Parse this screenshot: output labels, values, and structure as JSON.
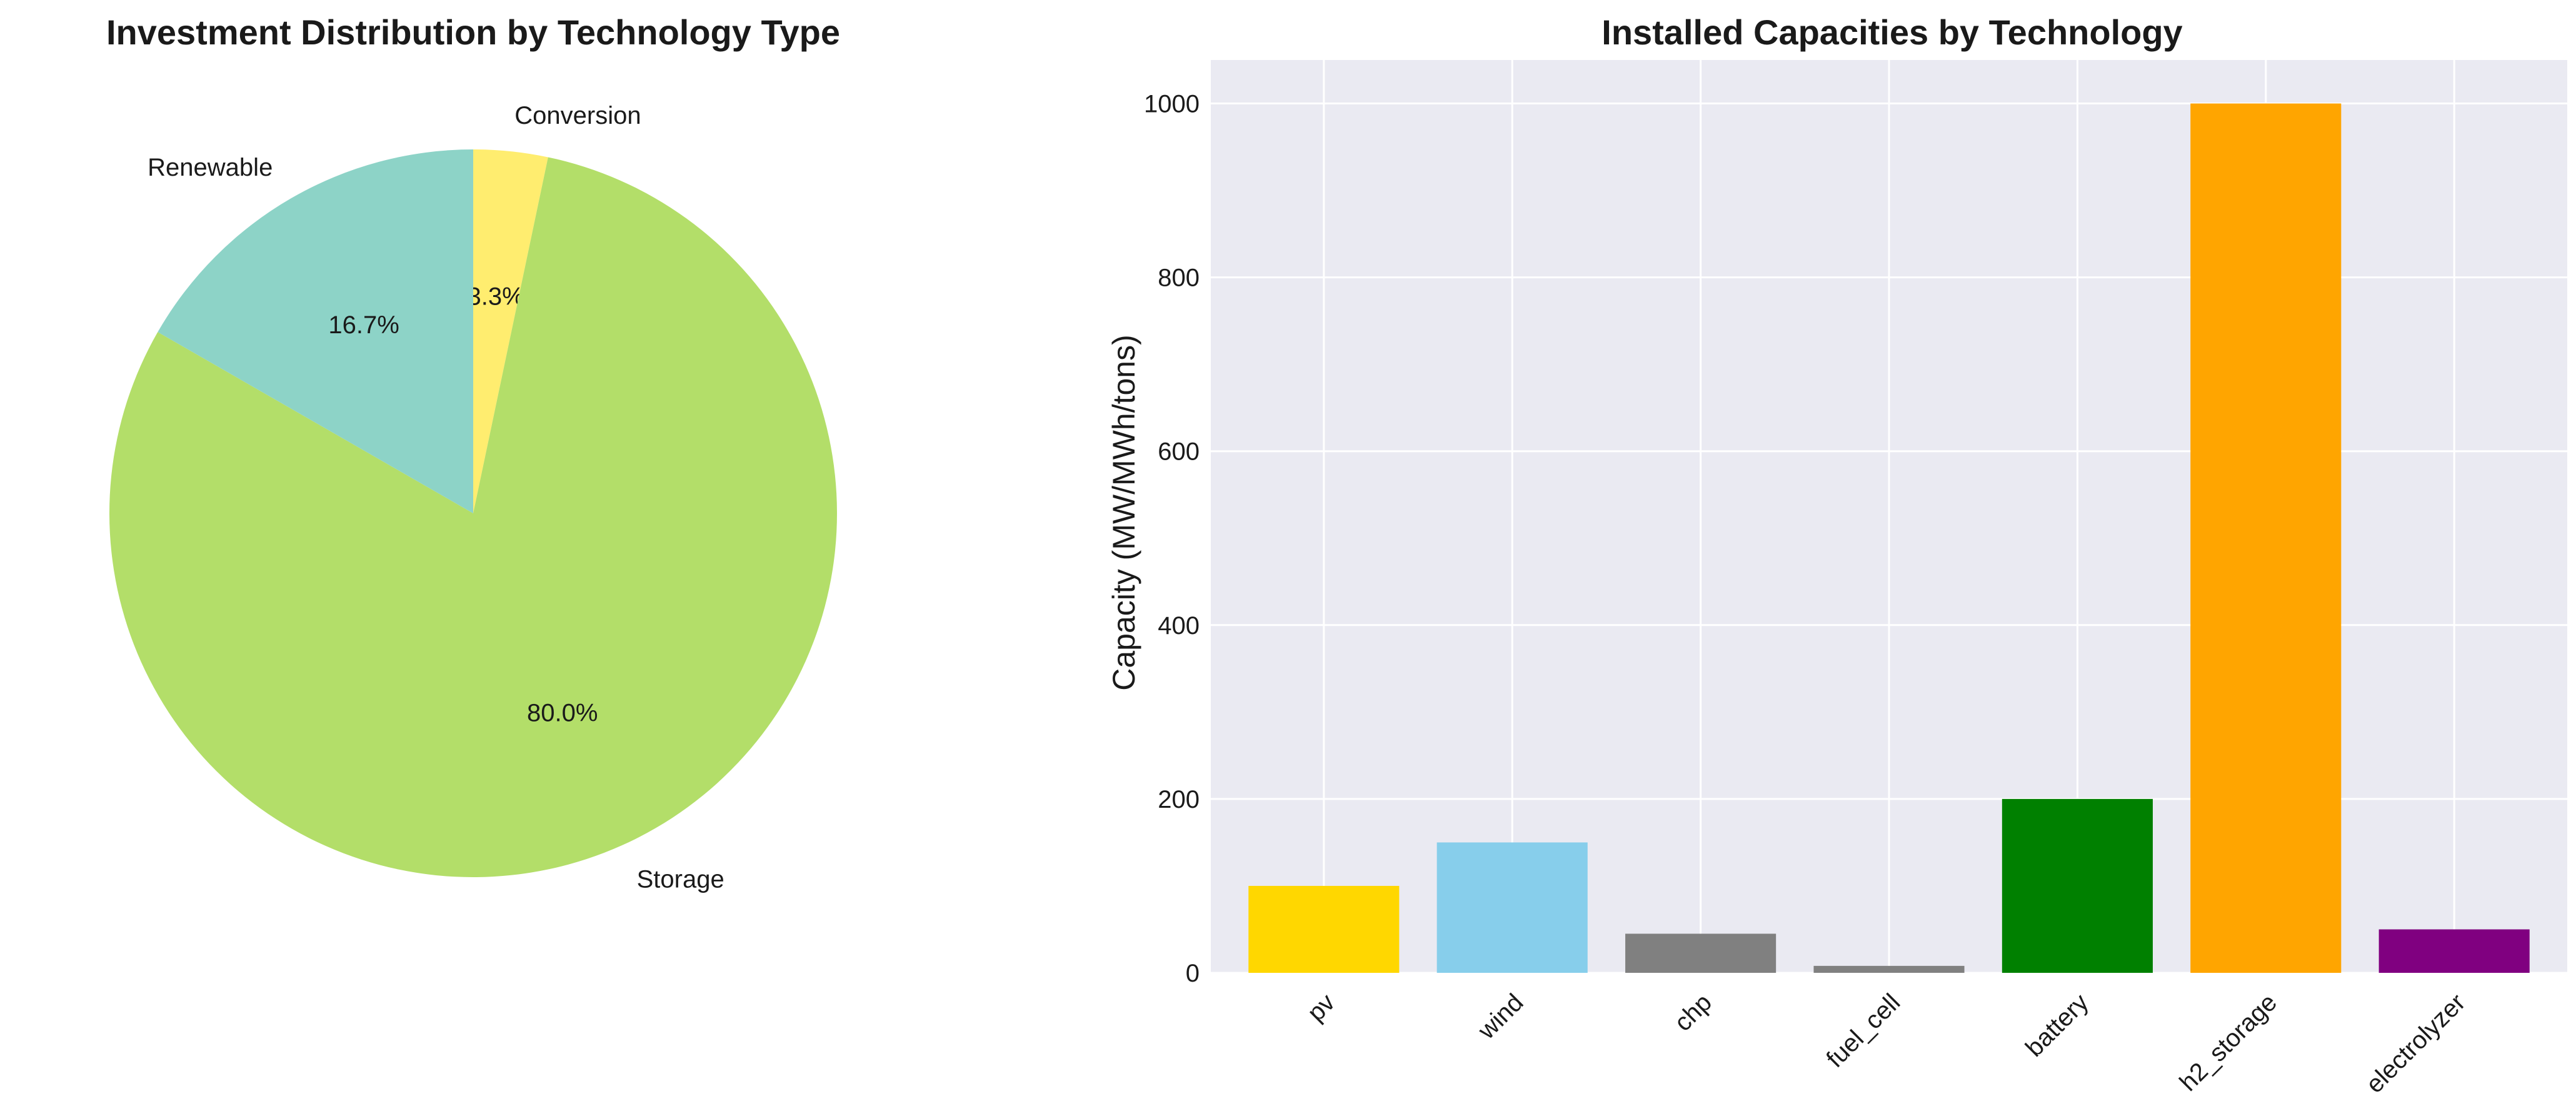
{
  "chart_data": [
    {
      "type": "pie",
      "title": "Investment Distribution by Technology Type",
      "slices": [
        {
          "label": "Conversion",
          "value": 3.3,
          "pct_label": "3.3%",
          "color": "#ffed6f"
        },
        {
          "label": "Storage",
          "value": 80.0,
          "pct_label": "80.0%",
          "color": "#b3de69"
        },
        {
          "label": "Renewable",
          "value": 16.7,
          "pct_label": "16.7%",
          "color": "#8dd3c7"
        }
      ],
      "start_angle": 90,
      "direction": "clockwise"
    },
    {
      "type": "bar",
      "title": "Installed Capacities by Technology",
      "xlabel": "",
      "ylabel": "Capacity (MW/MWh/tons)",
      "categories": [
        "pv",
        "wind",
        "chp",
        "fuel_cell",
        "battery",
        "h2_storage",
        "electrolyzer"
      ],
      "values": [
        100,
        150,
        45,
        8,
        200,
        1000,
        50
      ],
      "colors": [
        "#ffd700",
        "#87ceeb",
        "#808080",
        "#808080",
        "#008000",
        "#ffa500",
        "#800080"
      ],
      "ylim": [
        0,
        1050
      ],
      "yticks": [
        0,
        200,
        400,
        600,
        800,
        1000
      ],
      "grid": true
    }
  ]
}
